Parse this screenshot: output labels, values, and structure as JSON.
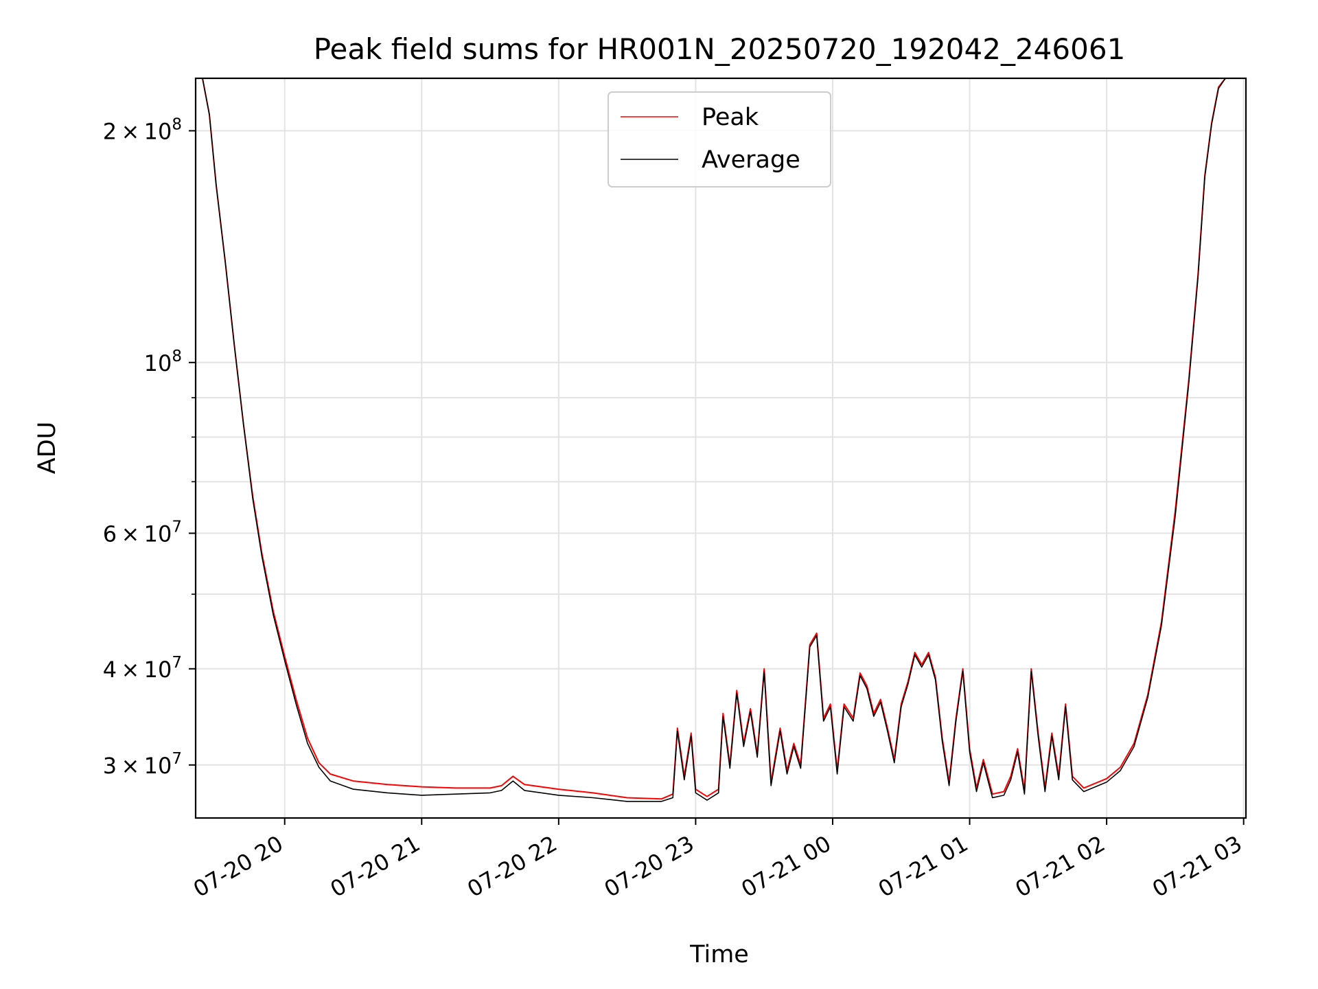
{
  "chart_data": {
    "type": "line",
    "title": "Peak field sums for HR001N_20250720_192042_246061",
    "xlabel": "Time",
    "ylabel": "ADU",
    "y_scale": "log",
    "grid": true,
    "legend_position": "top-center",
    "xlim": [
      "07-20 19:21",
      "07-21 03:01"
    ],
    "ylim": [
      25600000,
      234000000
    ],
    "x_ticks": [
      {
        "t": "07-20 20:00",
        "label": "07-20 20"
      },
      {
        "t": "07-20 21:00",
        "label": "07-20 21"
      },
      {
        "t": "07-20 22:00",
        "label": "07-20 22"
      },
      {
        "t": "07-20 23:00",
        "label": "07-20 23"
      },
      {
        "t": "07-21 00:00",
        "label": "07-21 00"
      },
      {
        "t": "07-21 01:00",
        "label": "07-21 01"
      },
      {
        "t": "07-21 02:00",
        "label": "07-21 02"
      },
      {
        "t": "07-21 03:00",
        "label": "07-21 03"
      }
    ],
    "y_major_ticks": [
      {
        "v": 30000000,
        "mant": "3",
        "exp": "7"
      },
      {
        "v": 40000000,
        "mant": "4",
        "exp": "7"
      },
      {
        "v": 60000000,
        "mant": "6",
        "exp": "7"
      },
      {
        "v": 100000000,
        "mant": "",
        "exp": "8"
      },
      {
        "v": 200000000,
        "mant": "2",
        "exp": "8"
      }
    ],
    "y_minor_ticks": [
      50000000,
      70000000,
      80000000,
      90000000
    ],
    "series": [
      {
        "name": "Peak",
        "color": "#ff0000",
        "points": [
          [
            "07-20 19:21",
            234000000
          ],
          [
            "07-20 19:24",
            234000000
          ],
          [
            "07-20 19:27",
            210000000
          ],
          [
            "07-20 19:30",
            170000000
          ],
          [
            "07-20 19:34",
            135000000
          ],
          [
            "07-20 19:38",
            105000000
          ],
          [
            "07-20 19:42",
            83000000
          ],
          [
            "07-20 19:46",
            67000000
          ],
          [
            "07-20 19:50",
            56500000
          ],
          [
            "07-20 19:55",
            47500000
          ],
          [
            "07-20 20:00",
            41500000
          ],
          [
            "07-20 20:05",
            36500000
          ],
          [
            "07-20 20:10",
            32500000
          ],
          [
            "07-20 20:15",
            30200000
          ],
          [
            "07-20 20:20",
            29200000
          ],
          [
            "07-20 20:30",
            28600000
          ],
          [
            "07-20 20:45",
            28300000
          ],
          [
            "07-20 21:00",
            28100000
          ],
          [
            "07-20 21:15",
            28000000
          ],
          [
            "07-20 21:30",
            28000000
          ],
          [
            "07-20 21:35",
            28200000
          ],
          [
            "07-20 21:40",
            29000000
          ],
          [
            "07-20 21:45",
            28300000
          ],
          [
            "07-20 22:00",
            27900000
          ],
          [
            "07-20 22:15",
            27600000
          ],
          [
            "07-20 22:30",
            27200000
          ],
          [
            "07-20 22:45",
            27100000
          ],
          [
            "07-20 22:50",
            27500000
          ],
          [
            "07-20 22:52",
            33500000
          ],
          [
            "07-20 22:55",
            29000000
          ],
          [
            "07-20 22:58",
            33000000
          ],
          [
            "07-20 23:00",
            27900000
          ],
          [
            "07-20 23:05",
            27300000
          ],
          [
            "07-20 23:10",
            27900000
          ],
          [
            "07-20 23:12",
            35000000
          ],
          [
            "07-20 23:15",
            30000000
          ],
          [
            "07-20 23:18",
            37500000
          ],
          [
            "07-20 23:21",
            32000000
          ],
          [
            "07-20 23:24",
            35500000
          ],
          [
            "07-20 23:27",
            31000000
          ],
          [
            "07-20 23:30",
            40000000
          ],
          [
            "07-20 23:33",
            28500000
          ],
          [
            "07-20 23:37",
            33500000
          ],
          [
            "07-20 23:40",
            29500000
          ],
          [
            "07-20 23:43",
            32000000
          ],
          [
            "07-20 23:46",
            30000000
          ],
          [
            "07-20 23:50",
            43000000
          ],
          [
            "07-20 23:53",
            44500000
          ],
          [
            "07-20 23:56",
            34500000
          ],
          [
            "07-20 23:59",
            36000000
          ],
          [
            "07-21 00:02",
            29500000
          ],
          [
            "07-21 00:05",
            36000000
          ],
          [
            "07-21 00:09",
            34500000
          ],
          [
            "07-21 00:12",
            39500000
          ],
          [
            "07-21 00:15",
            38000000
          ],
          [
            "07-21 00:18",
            35000000
          ],
          [
            "07-21 00:21",
            36500000
          ],
          [
            "07-21 00:24",
            33500000
          ],
          [
            "07-21 00:27",
            30500000
          ],
          [
            "07-21 00:30",
            36000000
          ],
          [
            "07-21 00:33",
            38500000
          ],
          [
            "07-21 00:36",
            42000000
          ],
          [
            "07-21 00:39",
            40500000
          ],
          [
            "07-21 00:42",
            42000000
          ],
          [
            "07-21 00:45",
            39000000
          ],
          [
            "07-21 00:48",
            32500000
          ],
          [
            "07-21 00:51",
            28500000
          ],
          [
            "07-21 00:54",
            34500000
          ],
          [
            "07-21 00:57",
            40000000
          ],
          [
            "07-21 01:00",
            31500000
          ],
          [
            "07-21 01:03",
            28000000
          ],
          [
            "07-21 01:06",
            30500000
          ],
          [
            "07-21 01:10",
            27500000
          ],
          [
            "07-21 01:15",
            27700000
          ],
          [
            "07-21 01:18",
            29000000
          ],
          [
            "07-21 01:21",
            31500000
          ],
          [
            "07-21 01:24",
            27800000
          ],
          [
            "07-21 01:27",
            40000000
          ],
          [
            "07-21 01:30",
            33000000
          ],
          [
            "07-21 01:33",
            28000000
          ],
          [
            "07-21 01:36",
            33000000
          ],
          [
            "07-21 01:39",
            29000000
          ],
          [
            "07-21 01:42",
            36000000
          ],
          [
            "07-21 01:45",
            29000000
          ],
          [
            "07-21 01:50",
            28000000
          ],
          [
            "07-21 02:00",
            28800000
          ],
          [
            "07-21 02:06",
            29800000
          ],
          [
            "07-21 02:12",
            32000000
          ],
          [
            "07-21 02:18",
            37000000
          ],
          [
            "07-21 02:24",
            46000000
          ],
          [
            "07-21 02:30",
            64000000
          ],
          [
            "07-21 02:36",
            95000000
          ],
          [
            "07-21 02:40",
            130000000
          ],
          [
            "07-21 02:43",
            175000000
          ],
          [
            "07-21 02:46",
            205000000
          ],
          [
            "07-21 02:49",
            228000000
          ],
          [
            "07-21 02:52",
            234000000
          ]
        ]
      },
      {
        "name": "Average",
        "color": "#000000",
        "points": [
          [
            "07-20 19:21",
            234000000
          ],
          [
            "07-20 19:24",
            234000000
          ],
          [
            "07-20 19:27",
            210000000
          ],
          [
            "07-20 19:30",
            170000000
          ],
          [
            "07-20 19:34",
            135000000
          ],
          [
            "07-20 19:38",
            105000000
          ],
          [
            "07-20 19:42",
            83000000
          ],
          [
            "07-20 19:46",
            66500000
          ],
          [
            "07-20 19:50",
            56000000
          ],
          [
            "07-20 19:55",
            47000000
          ],
          [
            "07-20 20:00",
            41000000
          ],
          [
            "07-20 20:05",
            36000000
          ],
          [
            "07-20 20:10",
            32000000
          ],
          [
            "07-20 20:15",
            29800000
          ],
          [
            "07-20 20:20",
            28600000
          ],
          [
            "07-20 20:30",
            27900000
          ],
          [
            "07-20 20:45",
            27600000
          ],
          [
            "07-20 21:00",
            27400000
          ],
          [
            "07-20 21:15",
            27500000
          ],
          [
            "07-20 21:30",
            27600000
          ],
          [
            "07-20 21:35",
            27800000
          ],
          [
            "07-20 21:40",
            28600000
          ],
          [
            "07-20 21:45",
            27800000
          ],
          [
            "07-20 22:00",
            27400000
          ],
          [
            "07-20 22:15",
            27200000
          ],
          [
            "07-20 22:30",
            26900000
          ],
          [
            "07-20 22:45",
            26900000
          ],
          [
            "07-20 22:50",
            27200000
          ],
          [
            "07-20 22:52",
            33200000
          ],
          [
            "07-20 22:55",
            28700000
          ],
          [
            "07-20 22:58",
            32700000
          ],
          [
            "07-20 23:00",
            27600000
          ],
          [
            "07-20 23:05",
            27000000
          ],
          [
            "07-20 23:10",
            27600000
          ],
          [
            "07-20 23:12",
            34700000
          ],
          [
            "07-20 23:15",
            29700000
          ],
          [
            "07-20 23:18",
            37200000
          ],
          [
            "07-20 23:21",
            31700000
          ],
          [
            "07-20 23:24",
            35200000
          ],
          [
            "07-20 23:27",
            30700000
          ],
          [
            "07-20 23:30",
            39700000
          ],
          [
            "07-20 23:33",
            28200000
          ],
          [
            "07-20 23:37",
            33200000
          ],
          [
            "07-20 23:40",
            29200000
          ],
          [
            "07-20 23:43",
            31700000
          ],
          [
            "07-20 23:46",
            29700000
          ],
          [
            "07-20 23:50",
            42700000
          ],
          [
            "07-20 23:53",
            44200000
          ],
          [
            "07-20 23:56",
            34200000
          ],
          [
            "07-20 23:59",
            35700000
          ],
          [
            "07-21 00:02",
            29200000
          ],
          [
            "07-21 00:05",
            35700000
          ],
          [
            "07-21 00:09",
            34200000
          ],
          [
            "07-21 00:12",
            39200000
          ],
          [
            "07-21 00:15",
            37700000
          ],
          [
            "07-21 00:18",
            34700000
          ],
          [
            "07-21 00:21",
            36200000
          ],
          [
            "07-21 00:24",
            33200000
          ],
          [
            "07-21 00:27",
            30200000
          ],
          [
            "07-21 00:30",
            35700000
          ],
          [
            "07-21 00:33",
            38200000
          ],
          [
            "07-21 00:36",
            41700000
          ],
          [
            "07-21 00:39",
            40200000
          ],
          [
            "07-21 00:42",
            41700000
          ],
          [
            "07-21 00:45",
            38700000
          ],
          [
            "07-21 00:48",
            32200000
          ],
          [
            "07-21 00:51",
            28200000
          ],
          [
            "07-21 00:54",
            34200000
          ],
          [
            "07-21 00:57",
            39700000
          ],
          [
            "07-21 01:00",
            31200000
          ],
          [
            "07-21 01:03",
            27700000
          ],
          [
            "07-21 01:06",
            30200000
          ],
          [
            "07-21 01:10",
            27200000
          ],
          [
            "07-21 01:15",
            27400000
          ],
          [
            "07-21 01:18",
            28700000
          ],
          [
            "07-21 01:21",
            31200000
          ],
          [
            "07-21 01:24",
            27500000
          ],
          [
            "07-21 01:27",
            39700000
          ],
          [
            "07-21 01:30",
            32700000
          ],
          [
            "07-21 01:33",
            27700000
          ],
          [
            "07-21 01:36",
            32700000
          ],
          [
            "07-21 01:39",
            28700000
          ],
          [
            "07-21 01:42",
            35700000
          ],
          [
            "07-21 01:45",
            28700000
          ],
          [
            "07-21 01:50",
            27700000
          ],
          [
            "07-21 02:00",
            28500000
          ],
          [
            "07-21 02:06",
            29500000
          ],
          [
            "07-21 02:12",
            31700000
          ],
          [
            "07-21 02:18",
            36700000
          ],
          [
            "07-21 02:24",
            45500000
          ],
          [
            "07-21 02:30",
            63000000
          ],
          [
            "07-21 02:36",
            94000000
          ],
          [
            "07-21 02:40",
            129000000
          ],
          [
            "07-21 02:43",
            174000000
          ],
          [
            "07-21 02:46",
            204000000
          ],
          [
            "07-21 02:49",
            227000000
          ],
          [
            "07-21 02:52",
            234000000
          ]
        ]
      }
    ]
  }
}
